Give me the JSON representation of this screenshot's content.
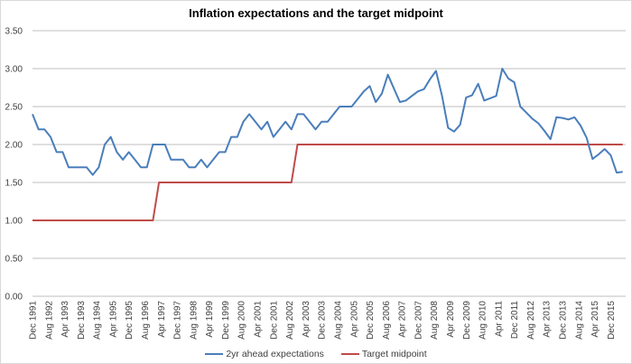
{
  "chart_data": {
    "type": "line",
    "title": "Inflation expectations and the target midpoint",
    "xlabel": "",
    "ylabel": "",
    "ylim": [
      0,
      3.5
    ],
    "yticks": [
      "0.00",
      "0.50",
      "1.00",
      "1.50",
      "2.00",
      "2.50",
      "3.00",
      "3.50"
    ],
    "grid": true,
    "legend": "bottom",
    "xtick_labels": [
      "Dec 1991",
      "Aug 1992",
      "Apr 1993",
      "Dec 1993",
      "Aug 1994",
      "Apr 1995",
      "Dec 1995",
      "Aug 1996",
      "Apr 1997",
      "Dec 1997",
      "Aug 1998",
      "Apr 1999",
      "Dec 1999",
      "Aug 2000",
      "Apr 2001",
      "Dec 2001",
      "Aug 2002",
      "Apr 2003",
      "Dec 2003",
      "Aug 2004",
      "Apr 2005",
      "Dec 2005",
      "Aug 2006",
      "Apr 2007",
      "Dec 2007",
      "Aug 2008",
      "Apr 2009",
      "Dec 2009",
      "Aug 2010",
      "Apr 2011",
      "Dec 2011",
      "Aug 2012",
      "Apr 2013",
      "Dec 2013",
      "Aug 2014",
      "Apr 2015",
      "Dec 2015"
    ],
    "x": [
      "Dec 1991",
      "Mar 1992",
      "Jun 1992",
      "Sep 1992",
      "Dec 1992",
      "Mar 1993",
      "Jun 1993",
      "Sep 1993",
      "Dec 1993",
      "Mar 1994",
      "Jun 1994",
      "Sep 1994",
      "Dec 1994",
      "Mar 1995",
      "Jun 1995",
      "Sep 1995",
      "Dec 1995",
      "Mar 1996",
      "Jun 1996",
      "Sep 1996",
      "Dec 1996",
      "Mar 1997",
      "Jun 1997",
      "Sep 1997",
      "Dec 1997",
      "Mar 1998",
      "Jun 1998",
      "Sep 1998",
      "Dec 1998",
      "Mar 1999",
      "Jun 1999",
      "Sep 1999",
      "Dec 1999",
      "Mar 2000",
      "Jun 2000",
      "Sep 2000",
      "Dec 2000",
      "Mar 2001",
      "Jun 2001",
      "Sep 2001",
      "Dec 2001",
      "Mar 2002",
      "Jun 2002",
      "Sep 2002",
      "Dec 2002",
      "Mar 2003",
      "Jun 2003",
      "Sep 2003",
      "Dec 2003",
      "Mar 2004",
      "Jun 2004",
      "Sep 2004",
      "Dec 2004",
      "Mar 2005",
      "Jun 2005",
      "Sep 2005",
      "Dec 2005",
      "Mar 2006",
      "Jun 2006",
      "Sep 2006",
      "Dec 2006",
      "Mar 2007",
      "Jun 2007",
      "Sep 2007",
      "Dec 2007",
      "Mar 2008",
      "Jun 2008",
      "Sep 2008",
      "Dec 2008",
      "Mar 2009",
      "Jun 2009",
      "Sep 2009",
      "Dec 2009",
      "Mar 2010",
      "Jun 2010",
      "Sep 2010",
      "Dec 2010",
      "Mar 2011",
      "Jun 2011",
      "Sep 2011",
      "Dec 2011",
      "Mar 2012",
      "Jun 2012",
      "Sep 2012",
      "Dec 2012",
      "Mar 2013",
      "Jun 2013",
      "Sep 2013",
      "Dec 2013",
      "Mar 2014",
      "Jun 2014",
      "Sep 2014",
      "Dec 2014",
      "Mar 2015",
      "Jun 2015",
      "Sep 2015",
      "Dec 2015",
      "Mar 2016",
      "Jun 2016"
    ],
    "series": [
      {
        "name": "2yr ahead expectations",
        "color": "#4a7ebb",
        "values": [
          2.4,
          2.2,
          2.2,
          2.1,
          1.9,
          1.9,
          1.7,
          1.7,
          1.7,
          1.7,
          1.6,
          1.7,
          2.0,
          2.1,
          1.9,
          1.8,
          1.9,
          1.8,
          1.7,
          1.7,
          2.0,
          2.0,
          2.0,
          1.8,
          1.8,
          1.8,
          1.7,
          1.7,
          1.8,
          1.7,
          1.8,
          1.9,
          1.9,
          2.1,
          2.1,
          2.3,
          2.4,
          2.3,
          2.2,
          2.3,
          2.1,
          2.2,
          2.3,
          2.2,
          2.4,
          2.4,
          2.3,
          2.2,
          2.3,
          2.3,
          2.4,
          2.5,
          2.5,
          2.5,
          2.6,
          2.7,
          2.77,
          2.56,
          2.67,
          2.92,
          2.74,
          2.56,
          2.58,
          2.64,
          2.7,
          2.73,
          2.86,
          2.97,
          2.64,
          2.22,
          2.17,
          2.26,
          2.62,
          2.65,
          2.8,
          2.58,
          2.61,
          2.64,
          3.0,
          2.87,
          2.82,
          2.5,
          2.42,
          2.34,
          2.28,
          2.18,
          2.07,
          2.36,
          2.35,
          2.33,
          2.36,
          2.25,
          2.09,
          1.81,
          1.87,
          1.94,
          1.86,
          1.63,
          1.64
        ]
      },
      {
        "name": "Target midpoint",
        "color": "#be4b48",
        "values": [
          1,
          1,
          1,
          1,
          1,
          1,
          1,
          1,
          1,
          1,
          1,
          1,
          1,
          1,
          1,
          1,
          1,
          1,
          1,
          1,
          1,
          1.5,
          1.5,
          1.5,
          1.5,
          1.5,
          1.5,
          1.5,
          1.5,
          1.5,
          1.5,
          1.5,
          1.5,
          1.5,
          1.5,
          1.5,
          1.5,
          1.5,
          1.5,
          1.5,
          1.5,
          1.5,
          1.5,
          1.5,
          2,
          2,
          2,
          2,
          2,
          2,
          2,
          2,
          2,
          2,
          2,
          2,
          2,
          2,
          2,
          2,
          2,
          2,
          2,
          2,
          2,
          2,
          2,
          2,
          2,
          2,
          2,
          2,
          2,
          2,
          2,
          2,
          2,
          2,
          2,
          2,
          2,
          2,
          2,
          2,
          2,
          2,
          2,
          2,
          2,
          2,
          2,
          2,
          2,
          2,
          2,
          2,
          2,
          2,
          2
        ]
      }
    ]
  }
}
